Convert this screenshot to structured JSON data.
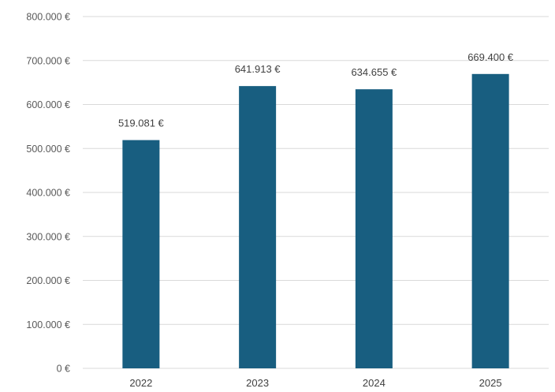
{
  "chart_data": {
    "type": "bar",
    "title": "",
    "xlabel": "",
    "ylabel": "",
    "categories": [
      "2022",
      "2023",
      "2024",
      "2025"
    ],
    "values": [
      519081,
      641913,
      634655,
      669400
    ],
    "value_labels": [
      "519.081 €",
      "641.913 €",
      "634.655 €",
      "669.400 €"
    ],
    "ylim": [
      0,
      800000
    ],
    "yticks": [
      0,
      100000,
      200000,
      300000,
      400000,
      500000,
      600000,
      700000,
      800000
    ],
    "ytick_labels": [
      "0 €",
      "100.000 €",
      "200.000 €",
      "300.000 €",
      "400.000 €",
      "500.000 €",
      "600.000 €",
      "700.000 €",
      "800.000 €"
    ],
    "grid": true,
    "legend": "none",
    "bar_color": "#185e80",
    "grid_color": "#d9d9d9"
  }
}
